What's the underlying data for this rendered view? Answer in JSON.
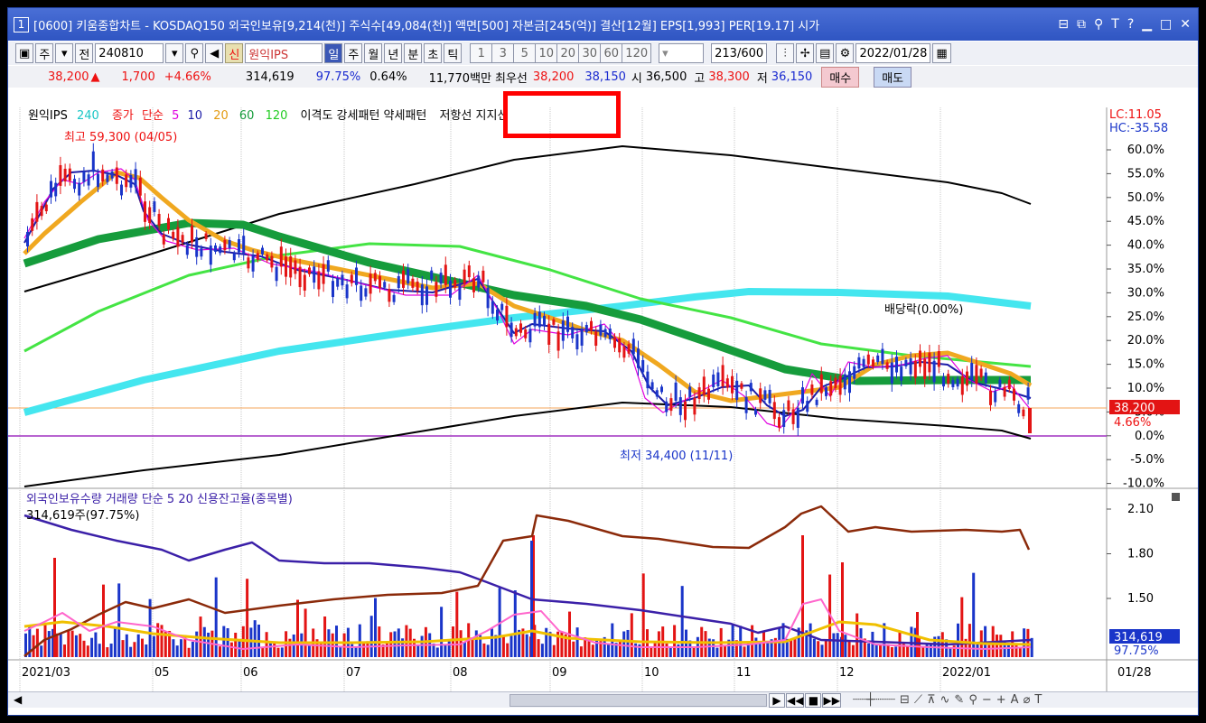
{
  "title": {
    "num": "1",
    "text": "[0600] 키움종합차트 - KOSDAQ150 외국인보유[9,214(천)] 주식수[49,084(천)] 액면[500] 자본금[245(억)] 결산[12월] EPS[1,993] PER[19.17] 시가"
  },
  "toolbar": {
    "period": "주",
    "mode": "전",
    "code": "240810",
    "name": "원익IPS",
    "prefix": "신",
    "day": "일",
    "week": "주",
    "month": "월",
    "year": "년",
    "minute": "분",
    "second": "초",
    "tick": "틱",
    "intervals": [
      "1",
      "3",
      "5",
      "10",
      "20",
      "30",
      "60",
      "120"
    ],
    "count": "213",
    "total": "/600",
    "date": "2022/01/28"
  },
  "quote": {
    "price": "38,200",
    "arrow": "▲",
    "change": "1,700",
    "pct": "+4.66%",
    "volume": "314,619",
    "ratio1": "97.75%",
    "ratio2": "0.64%",
    "amount": "11,770백만",
    "open_label": "시",
    "open": "36,500",
    "high_label": "고",
    "high": "38,300",
    "low_label": "저",
    "low": "36,150",
    "mid_label": "최우선",
    "mid1": "38,200",
    "mid2": "38,150",
    "buy": "매수",
    "sell": "매도"
  },
  "legend": {
    "name": "원익IPS",
    "ma240": "240",
    "close": "종가",
    "simple": "단순",
    "ma5": "5",
    "ma10": "10",
    "ma20": "20",
    "ma60": "60",
    "ma120": "120",
    "items": "이격도 강세패턴  약세패턴",
    "sr": "저항선  지지선"
  },
  "panel": {
    "lc": "LC:11.05",
    "hc": "HC:-35.58",
    "yticks": [
      "60.0%",
      "55.0%",
      "50.0%",
      "45.0%",
      "40.0%",
      "35.0%",
      "30.0%",
      "25.0%",
      "20.0%",
      "15.0%",
      "10.0%",
      "5.0%",
      "0.0%",
      "-5.0%",
      "-10.0%"
    ],
    "price_label": "38,200",
    "pct_label": "4.66%",
    "high_note": "최고 59,300 (04/05)",
    "low_note": "최저 34,400 (11/11)",
    "div_note": "배당락(0.00%)"
  },
  "lower": {
    "legend": "외국인보유수량  거래량  단순 5  20  신용잔고율(종목별)",
    "sub": "314,619주(97.75%)",
    "yticks": [
      "2.10",
      "1.80",
      "1.50"
    ],
    "vol_label": "314,619",
    "vol_pct": "97.75%"
  },
  "xaxis": {
    "labels": [
      "2021/03",
      "05",
      "06",
      "07",
      "08",
      "09",
      "10",
      "11",
      "12",
      "2022/01"
    ],
    "right": "01/28"
  },
  "colors": {
    "up": "#e31414",
    "down": "#1a35c9",
    "ma5": "#e000e0",
    "ma10": "#1c1ca8",
    "ma20": "#f0a820",
    "ma60": "#169c3c",
    "ma120": "#44e444",
    "ma240": "#44e6ef",
    "band": "#000000"
  }
}
